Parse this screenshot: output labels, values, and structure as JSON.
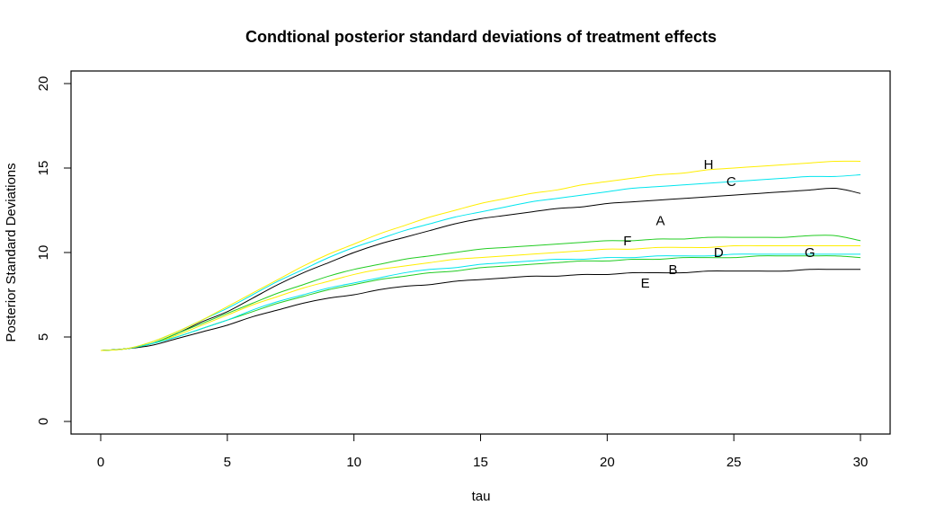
{
  "chart_data": {
    "type": "line",
    "title": "Condtional posterior standard deviations of treatment effects",
    "xlabel": "tau",
    "ylabel": "Posterior Standard Deviations",
    "xlim": [
      0,
      30
    ],
    "ylim": [
      0,
      20
    ],
    "xticks": [
      0,
      5,
      10,
      15,
      20,
      25,
      30
    ],
    "yticks": [
      0,
      5,
      10,
      15,
      20
    ],
    "grid": false,
    "box": true,
    "tau": [
      0,
      1,
      2,
      3,
      4,
      5,
      6,
      7,
      8,
      9,
      10,
      11,
      12,
      13,
      14,
      15,
      16,
      17,
      18,
      19,
      20,
      21,
      22,
      23,
      24,
      25,
      26,
      27,
      28,
      29,
      30
    ],
    "series": [
      {
        "name": "A",
        "color": "#000000",
        "label_at": [
          22.1,
          11.9
        ],
        "values": [
          4.2,
          4.3,
          4.6,
          5.2,
          5.9,
          6.5,
          7.3,
          8.1,
          8.8,
          9.4,
          10.0,
          10.5,
          10.9,
          11.3,
          11.7,
          12.0,
          12.2,
          12.4,
          12.6,
          12.7,
          12.9,
          13.0,
          13.1,
          13.2,
          13.3,
          13.4,
          13.5,
          13.6,
          13.7,
          13.8,
          13.5
        ]
      },
      {
        "name": "B",
        "color": "#22cc22",
        "label_at": [
          22.6,
          9.0
        ],
        "values": [
          4.2,
          4.3,
          4.6,
          5.0,
          5.5,
          6.0,
          6.5,
          7.0,
          7.4,
          7.8,
          8.1,
          8.4,
          8.6,
          8.8,
          8.9,
          9.1,
          9.2,
          9.3,
          9.4,
          9.5,
          9.5,
          9.6,
          9.6,
          9.7,
          9.7,
          9.7,
          9.8,
          9.8,
          9.8,
          9.8,
          9.7
        ]
      },
      {
        "name": "C",
        "color": "#00e5ee",
        "label_at": [
          24.9,
          14.2
        ],
        "values": [
          4.2,
          4.3,
          4.7,
          5.3,
          6.0,
          6.7,
          7.5,
          8.3,
          9.0,
          9.7,
          10.3,
          10.8,
          11.3,
          11.7,
          12.1,
          12.4,
          12.7,
          13.0,
          13.2,
          13.4,
          13.6,
          13.8,
          13.9,
          14.0,
          14.1,
          14.2,
          14.3,
          14.4,
          14.5,
          14.5,
          14.6
        ]
      },
      {
        "name": "D",
        "color": "#ffee00",
        "label_at": [
          24.4,
          10.0
        ],
        "values": [
          4.2,
          4.3,
          4.6,
          5.1,
          5.7,
          6.3,
          6.9,
          7.4,
          7.9,
          8.3,
          8.7,
          9.0,
          9.2,
          9.4,
          9.6,
          9.7,
          9.8,
          9.9,
          10.0,
          10.1,
          10.2,
          10.2,
          10.3,
          10.3,
          10.3,
          10.4,
          10.4,
          10.4,
          10.4,
          10.4,
          10.4
        ]
      },
      {
        "name": "E",
        "color": "#000000",
        "label_at": [
          21.5,
          8.2
        ],
        "values": [
          4.2,
          4.3,
          4.5,
          4.9,
          5.3,
          5.7,
          6.2,
          6.6,
          7.0,
          7.3,
          7.5,
          7.8,
          8.0,
          8.1,
          8.3,
          8.4,
          8.5,
          8.6,
          8.6,
          8.7,
          8.7,
          8.8,
          8.8,
          8.8,
          8.9,
          8.9,
          8.9,
          8.9,
          9.0,
          9.0,
          9.0
        ]
      },
      {
        "name": "F",
        "color": "#22cc22",
        "label_at": [
          20.8,
          10.7
        ],
        "values": [
          4.2,
          4.3,
          4.6,
          5.2,
          5.8,
          6.4,
          7.0,
          7.6,
          8.1,
          8.6,
          9.0,
          9.3,
          9.6,
          9.8,
          10.0,
          10.2,
          10.3,
          10.4,
          10.5,
          10.6,
          10.7,
          10.7,
          10.8,
          10.8,
          10.9,
          10.9,
          10.9,
          10.9,
          11.0,
          11.0,
          10.7
        ]
      },
      {
        "name": "G",
        "color": "#00e5ee",
        "label_at": [
          28.0,
          10.0
        ],
        "values": [
          4.2,
          4.3,
          4.6,
          5.0,
          5.5,
          6.0,
          6.6,
          7.1,
          7.5,
          7.9,
          8.2,
          8.5,
          8.8,
          9.0,
          9.1,
          9.3,
          9.4,
          9.5,
          9.6,
          9.6,
          9.7,
          9.7,
          9.8,
          9.8,
          9.8,
          9.9,
          9.9,
          9.9,
          9.9,
          9.9,
          9.9
        ]
      },
      {
        "name": "H",
        "color": "#ffee00",
        "label_at": [
          24.0,
          15.2
        ],
        "values": [
          4.2,
          4.3,
          4.7,
          5.3,
          6.0,
          6.8,
          7.6,
          8.4,
          9.2,
          9.9,
          10.5,
          11.1,
          11.6,
          12.1,
          12.5,
          12.9,
          13.2,
          13.5,
          13.7,
          14.0,
          14.2,
          14.4,
          14.6,
          14.7,
          14.9,
          15.0,
          15.1,
          15.2,
          15.3,
          15.4,
          15.4
        ]
      }
    ]
  }
}
